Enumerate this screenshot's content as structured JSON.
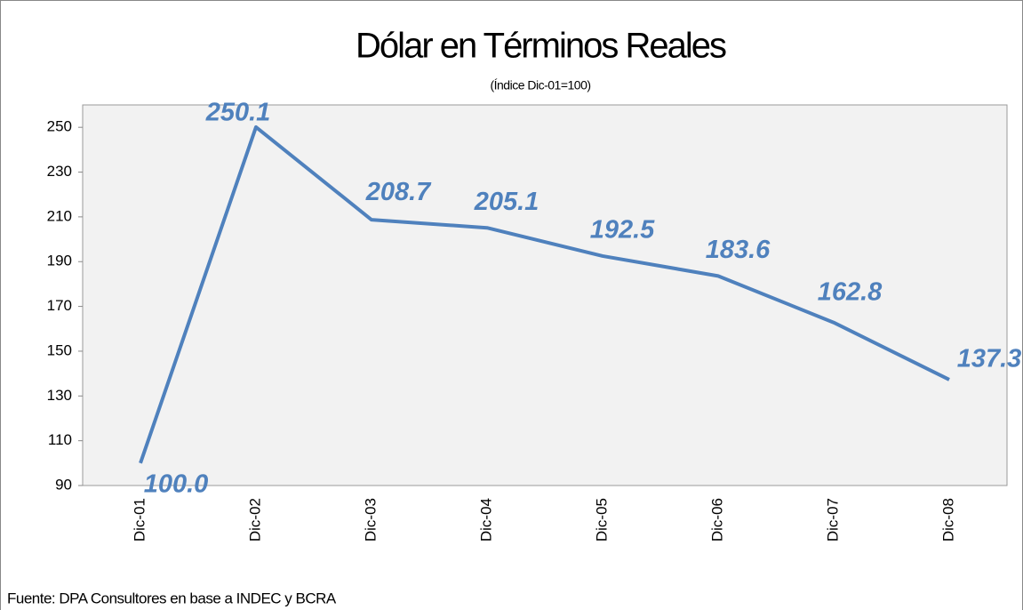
{
  "chart_data": {
    "type": "line",
    "title": "Dólar en Términos Reales",
    "subtitle": "(Índice Dic-01=100)",
    "source": "Fuente: DPA Consultores en base a INDEC y BCRA",
    "categories": [
      "Dic-01",
      "Dic-02",
      "Dic-03",
      "Dic-04",
      "Dic-05",
      "Dic-06",
      "Dic-07",
      "Dic-08"
    ],
    "series": [
      {
        "name": "Dólar en Términos Reales",
        "color": "#4f81bd",
        "values": [
          100.0,
          250.1,
          208.7,
          205.1,
          192.5,
          183.6,
          162.8,
          137.3
        ],
        "value_labels": [
          "100.0",
          "250.1",
          "208.7",
          "205.1",
          "192.5",
          "183.6",
          "162.8",
          "137.3"
        ]
      }
    ],
    "ylim": [
      90,
      260
    ],
    "yticks": [
      90,
      110,
      130,
      150,
      170,
      190,
      210,
      230,
      250
    ],
    "grid": false
  }
}
